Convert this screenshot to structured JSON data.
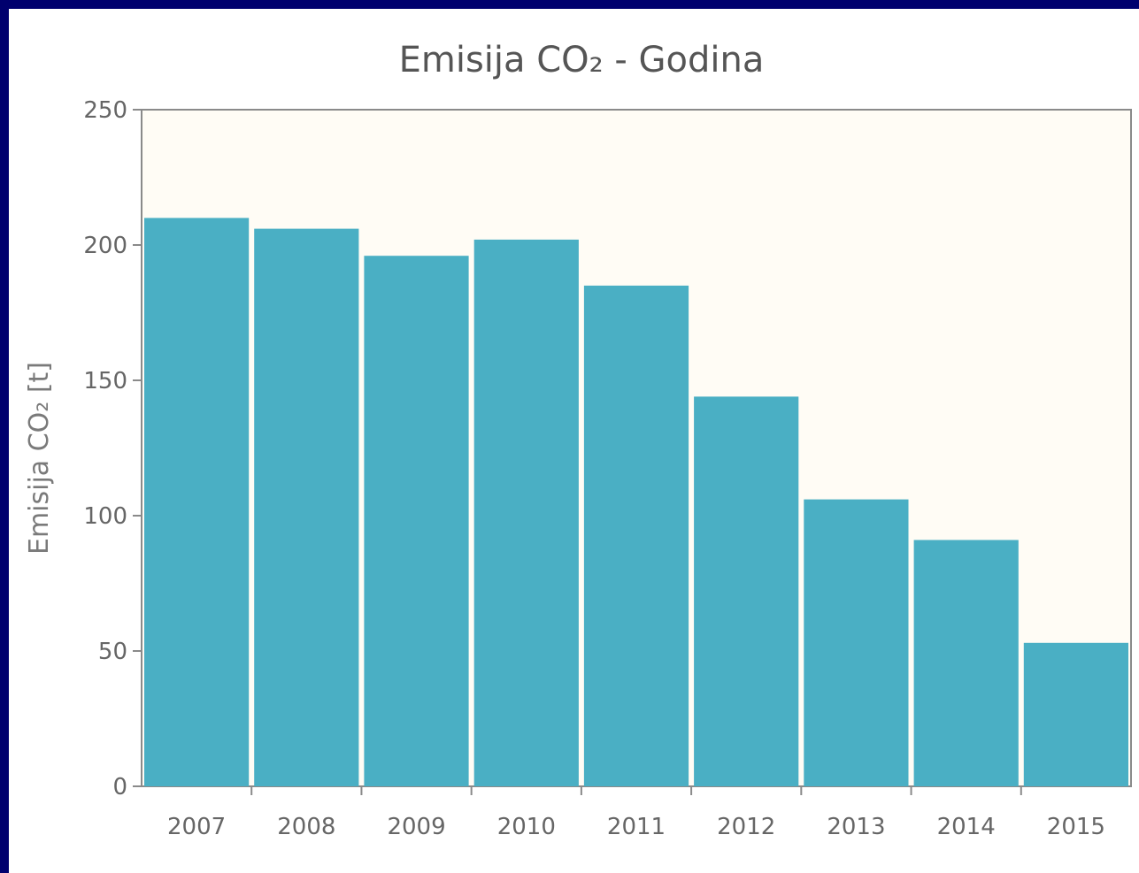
{
  "chart_data": {
    "type": "bar",
    "title": "Emisija CO₂ - Godina",
    "ylabel": "Emisija CO₂ [t]",
    "xlabel": "",
    "categories": [
      "2007",
      "2008",
      "2009",
      "2010",
      "2011",
      "2012",
      "2013",
      "2014",
      "2015"
    ],
    "values": [
      210,
      206,
      196,
      202,
      185,
      144,
      106,
      91,
      53
    ],
    "ylim": [
      0,
      250
    ],
    "yticks": [
      0,
      50,
      100,
      150,
      200,
      250
    ],
    "grid": false,
    "legend": "none",
    "colors": {
      "bar": "#4aafc4",
      "plot_background": "#fffcf5",
      "frame_background": "#00006e",
      "axis": "#8a8a8a"
    }
  }
}
